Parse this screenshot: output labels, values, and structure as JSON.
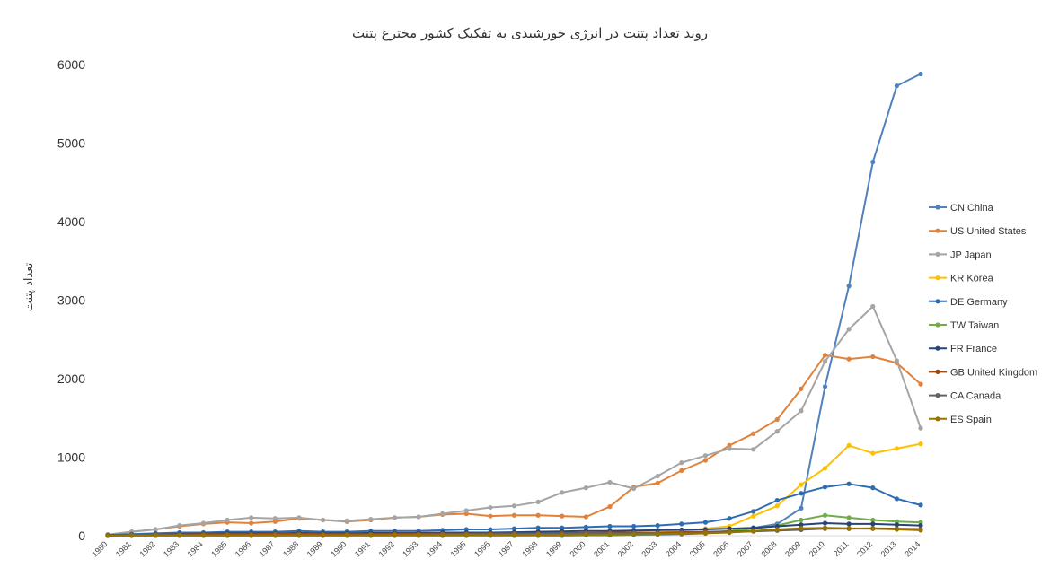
{
  "chart_data": {
    "type": "line",
    "title": "روند تعداد پتنت در انرژی خورشیدی به تفکیک کشور مخترع  پتنت",
    "xlabel": "",
    "ylabel": "تعداد پتنت",
    "ylim": [
      0,
      6000
    ],
    "yticks": [
      "0",
      "1000",
      "2000",
      "3000",
      "4000",
      "5000",
      "6000"
    ],
    "grid": false,
    "legend_position": "right",
    "categories": [
      "1980",
      "1981",
      "1982",
      "1983",
      "1984",
      "1985",
      "1986",
      "1987",
      "1988",
      "1989",
      "1990",
      "1991",
      "1992",
      "1993",
      "1994",
      "1995",
      "1996",
      "1997",
      "1998",
      "1999",
      "2000",
      "2001",
      "2002",
      "2003",
      "2004",
      "2005",
      "2006",
      "2007",
      "2008",
      "2009",
      "2010",
      "2011",
      "2012",
      "2013",
      "2014"
    ],
    "series": [
      {
        "name": "CN China",
        "color": "#4f81bd",
        "values": [
          0,
          0,
          0,
          0,
          0,
          0,
          0,
          0,
          0,
          0,
          0,
          0,
          0,
          0,
          0,
          0,
          0,
          0,
          0,
          0,
          5,
          5,
          10,
          15,
          20,
          30,
          60,
          100,
          150,
          350,
          1900,
          3180,
          4760,
          5730,
          5880
        ]
      },
      {
        "name": "US United States",
        "color": "#e0823c",
        "values": [
          10,
          50,
          80,
          120,
          150,
          170,
          160,
          180,
          220,
          200,
          180,
          200,
          230,
          240,
          270,
          280,
          250,
          260,
          260,
          250,
          240,
          370,
          620,
          670,
          830,
          960,
          1150,
          1300,
          1480,
          1870,
          2300,
          2250,
          2280,
          2200,
          1930
        ]
      },
      {
        "name": "JP Japan",
        "color": "#a5a5a5",
        "values": [
          15,
          50,
          80,
          130,
          160,
          200,
          230,
          220,
          230,
          200,
          190,
          210,
          230,
          240,
          280,
          320,
          360,
          380,
          430,
          550,
          610,
          680,
          600,
          760,
          930,
          1020,
          1110,
          1100,
          1330,
          1590,
          2220,
          2630,
          2920,
          2230,
          1370
        ]
      },
      {
        "name": "KR Korea",
        "color": "#ffc000",
        "values": [
          0,
          0,
          0,
          0,
          0,
          0,
          0,
          0,
          0,
          0,
          0,
          0,
          0,
          0,
          0,
          0,
          0,
          0,
          5,
          10,
          20,
          30,
          30,
          40,
          60,
          90,
          120,
          250,
          380,
          650,
          860,
          1150,
          1050,
          1110,
          1170
        ]
      },
      {
        "name": "DE Germany",
        "color": "#2e6db3",
        "values": [
          10,
          20,
          30,
          40,
          40,
          50,
          50,
          50,
          60,
          50,
          50,
          60,
          60,
          60,
          70,
          80,
          80,
          90,
          100,
          100,
          110,
          120,
          120,
          130,
          150,
          170,
          220,
          310,
          450,
          540,
          620,
          660,
          610,
          470,
          390
        ]
      },
      {
        "name": "TW Taiwan",
        "color": "#70ad47",
        "values": [
          0,
          0,
          0,
          0,
          0,
          0,
          0,
          0,
          0,
          0,
          0,
          0,
          0,
          0,
          0,
          0,
          0,
          0,
          0,
          5,
          10,
          10,
          15,
          20,
          30,
          40,
          60,
          90,
          130,
          200,
          260,
          230,
          200,
          180,
          170
        ]
      },
      {
        "name": "FR France",
        "color": "#264478",
        "values": [
          5,
          10,
          15,
          20,
          25,
          30,
          30,
          30,
          35,
          30,
          30,
          35,
          35,
          35,
          40,
          40,
          40,
          45,
          50,
          55,
          60,
          60,
          65,
          70,
          75,
          80,
          90,
          100,
          120,
          140,
          160,
          150,
          150,
          140,
          130
        ]
      },
      {
        "name": "GB United Kingdom",
        "color": "#9e480e",
        "values": [
          5,
          10,
          15,
          15,
          20,
          20,
          20,
          25,
          25,
          20,
          20,
          20,
          25,
          25,
          25,
          25,
          30,
          30,
          30,
          35,
          35,
          40,
          40,
          40,
          45,
          50,
          55,
          60,
          70,
          80,
          90,
          90,
          95,
          90,
          85
        ]
      },
      {
        "name": "CA Canada",
        "color": "#636363",
        "values": [
          2,
          5,
          8,
          10,
          10,
          12,
          12,
          12,
          15,
          12,
          12,
          15,
          15,
          15,
          18,
          20,
          20,
          22,
          25,
          25,
          30,
          30,
          30,
          35,
          35,
          40,
          45,
          55,
          65,
          75,
          90,
          90,
          90,
          85,
          80
        ]
      },
      {
        "name": "ES Spain",
        "color": "#997300",
        "values": [
          0,
          2,
          3,
          4,
          5,
          5,
          5,
          6,
          6,
          6,
          6,
          7,
          7,
          8,
          8,
          10,
          10,
          10,
          12,
          12,
          15,
          15,
          18,
          20,
          25,
          30,
          40,
          60,
          80,
          95,
          100,
          95,
          90,
          80,
          70
        ]
      }
    ]
  }
}
